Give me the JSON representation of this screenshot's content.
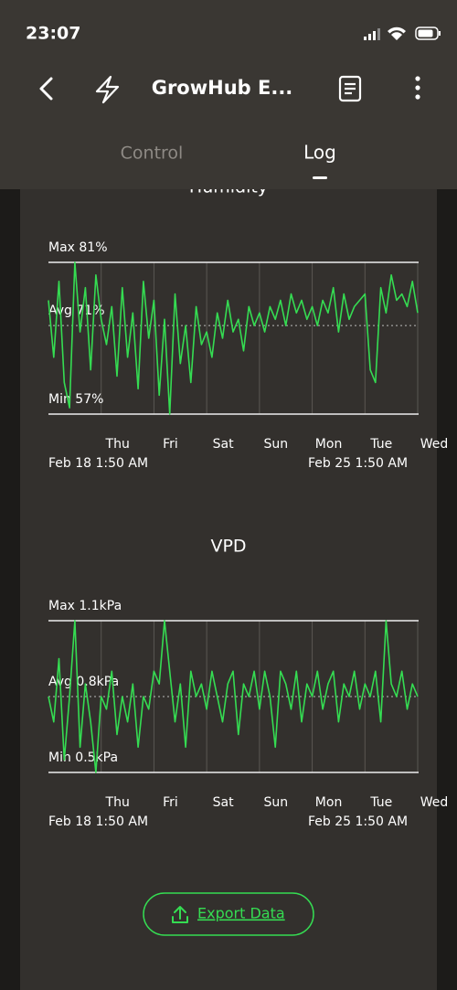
{
  "status_bar": {
    "time": "23:07"
  },
  "nav": {
    "title": "GrowHub E..."
  },
  "tabs": [
    "Control",
    "Log"
  ],
  "chart_data": [
    {
      "type": "line",
      "title": "Humidity",
      "color": "#35dc52",
      "x": [
        0,
        0.1,
        0.2,
        0.3,
        0.4,
        0.5,
        0.6,
        0.7,
        0.8,
        0.9,
        1,
        1.1,
        1.2,
        1.3,
        1.4,
        1.5,
        1.6,
        1.7,
        1.8,
        1.9,
        2,
        2.1,
        2.2,
        2.3,
        2.4,
        2.5,
        2.6,
        2.7,
        2.8,
        2.9,
        3,
        3.1,
        3.2,
        3.3,
        3.4,
        3.5,
        3.6,
        3.7,
        3.8,
        3.9,
        4,
        4.1,
        4.2,
        4.3,
        4.4,
        4.5,
        4.6,
        4.7,
        4.8,
        4.9,
        5,
        5.1,
        5.2,
        5.3,
        5.4,
        5.5,
        5.6,
        5.7,
        5.8,
        5.9,
        6,
        6.1,
        6.2,
        6.3,
        6.4,
        6.5,
        6.6,
        6.7,
        6.8,
        6.9,
        7
      ],
      "values": [
        75,
        66,
        78,
        62,
        58,
        81,
        70,
        77,
        64,
        79,
        72,
        68,
        74,
        63,
        77,
        66,
        73,
        61,
        78,
        69,
        75,
        60,
        72,
        57,
        76,
        65,
        71,
        62,
        74,
        68,
        70,
        66,
        73,
        69,
        75,
        70,
        72,
        67,
        74,
        71,
        73,
        70,
        74,
        72,
        75,
        71,
        76,
        73,
        75,
        72,
        74,
        71,
        75,
        73,
        77,
        70,
        76,
        72,
        74,
        75,
        76,
        64,
        62,
        77,
        73,
        79,
        75,
        76,
        74,
        78,
        73
      ],
      "xlim": [
        0,
        7
      ],
      "ylim": [
        57,
        81
      ],
      "xticks": [
        {
          "value": 1,
          "label": "Thu"
        },
        {
          "value": 2,
          "label": "Fri"
        },
        {
          "value": 3,
          "label": "Sat"
        },
        {
          "value": 4,
          "label": "Sun"
        },
        {
          "value": 5,
          "label": "Mon"
        },
        {
          "value": 6,
          "label": "Tue"
        },
        {
          "value": 7,
          "label": "Wed"
        }
      ],
      "yticks": [
        {
          "value": 81,
          "label": "Max 81%"
        },
        {
          "value": 71,
          "label": "Avg 71%"
        },
        {
          "value": 57,
          "label": "Min 57%"
        }
      ],
      "x_range_labels": [
        "Feb 18 1:50 AM",
        "Feb 25 1:50 AM"
      ]
    },
    {
      "type": "line",
      "title": "VPD",
      "color": "#35dc52",
      "x": [
        0,
        0.1,
        0.2,
        0.3,
        0.4,
        0.5,
        0.6,
        0.7,
        0.8,
        0.9,
        1,
        1.1,
        1.2,
        1.3,
        1.4,
        1.5,
        1.6,
        1.7,
        1.8,
        1.9,
        2,
        2.1,
        2.2,
        2.3,
        2.4,
        2.5,
        2.6,
        2.7,
        2.8,
        2.9,
        3,
        3.1,
        3.2,
        3.3,
        3.4,
        3.5,
        3.6,
        3.7,
        3.8,
        3.9,
        4,
        4.1,
        4.2,
        4.3,
        4.4,
        4.5,
        4.6,
        4.7,
        4.8,
        4.9,
        5,
        5.1,
        5.2,
        5.3,
        5.4,
        5.5,
        5.6,
        5.7,
        5.8,
        5.9,
        6,
        6.1,
        6.2,
        6.3,
        6.4,
        6.5,
        6.6,
        6.7,
        6.8,
        6.9,
        7
      ],
      "values": [
        0.8,
        0.7,
        0.95,
        0.55,
        0.8,
        1.1,
        0.6,
        0.85,
        0.7,
        0.5,
        0.8,
        0.75,
        0.9,
        0.65,
        0.8,
        0.7,
        0.85,
        0.6,
        0.8,
        0.75,
        0.9,
        0.85,
        1.1,
        0.9,
        0.7,
        0.85,
        0.6,
        0.9,
        0.8,
        0.85,
        0.75,
        0.9,
        0.8,
        0.7,
        0.85,
        0.9,
        0.65,
        0.85,
        0.8,
        0.9,
        0.75,
        0.9,
        0.8,
        0.6,
        0.9,
        0.85,
        0.75,
        0.9,
        0.7,
        0.85,
        0.8,
        0.9,
        0.75,
        0.85,
        0.9,
        0.7,
        0.85,
        0.8,
        0.9,
        0.75,
        0.85,
        0.8,
        0.9,
        0.7,
        1.1,
        0.85,
        0.8,
        0.9,
        0.75,
        0.85,
        0.8
      ],
      "xlim": [
        0,
        7
      ],
      "ylim": [
        0.5,
        1.1
      ],
      "xticks": [
        {
          "value": 1,
          "label": "Thu"
        },
        {
          "value": 2,
          "label": "Fri"
        },
        {
          "value": 3,
          "label": "Sat"
        },
        {
          "value": 4,
          "label": "Sun"
        },
        {
          "value": 5,
          "label": "Mon"
        },
        {
          "value": 6,
          "label": "Tue"
        },
        {
          "value": 7,
          "label": "Wed"
        }
      ],
      "yticks": [
        {
          "value": 1.1,
          "label": "Max 1.1kPa"
        },
        {
          "value": 0.8,
          "label": "Avg 0.8kPa"
        },
        {
          "value": 0.5,
          "label": "Min 0.5kPa"
        }
      ],
      "x_range_labels": [
        "Feb 18 1:50 AM",
        "Feb 25 1:50 AM"
      ]
    }
  ],
  "button": {
    "label": "Export Data"
  }
}
